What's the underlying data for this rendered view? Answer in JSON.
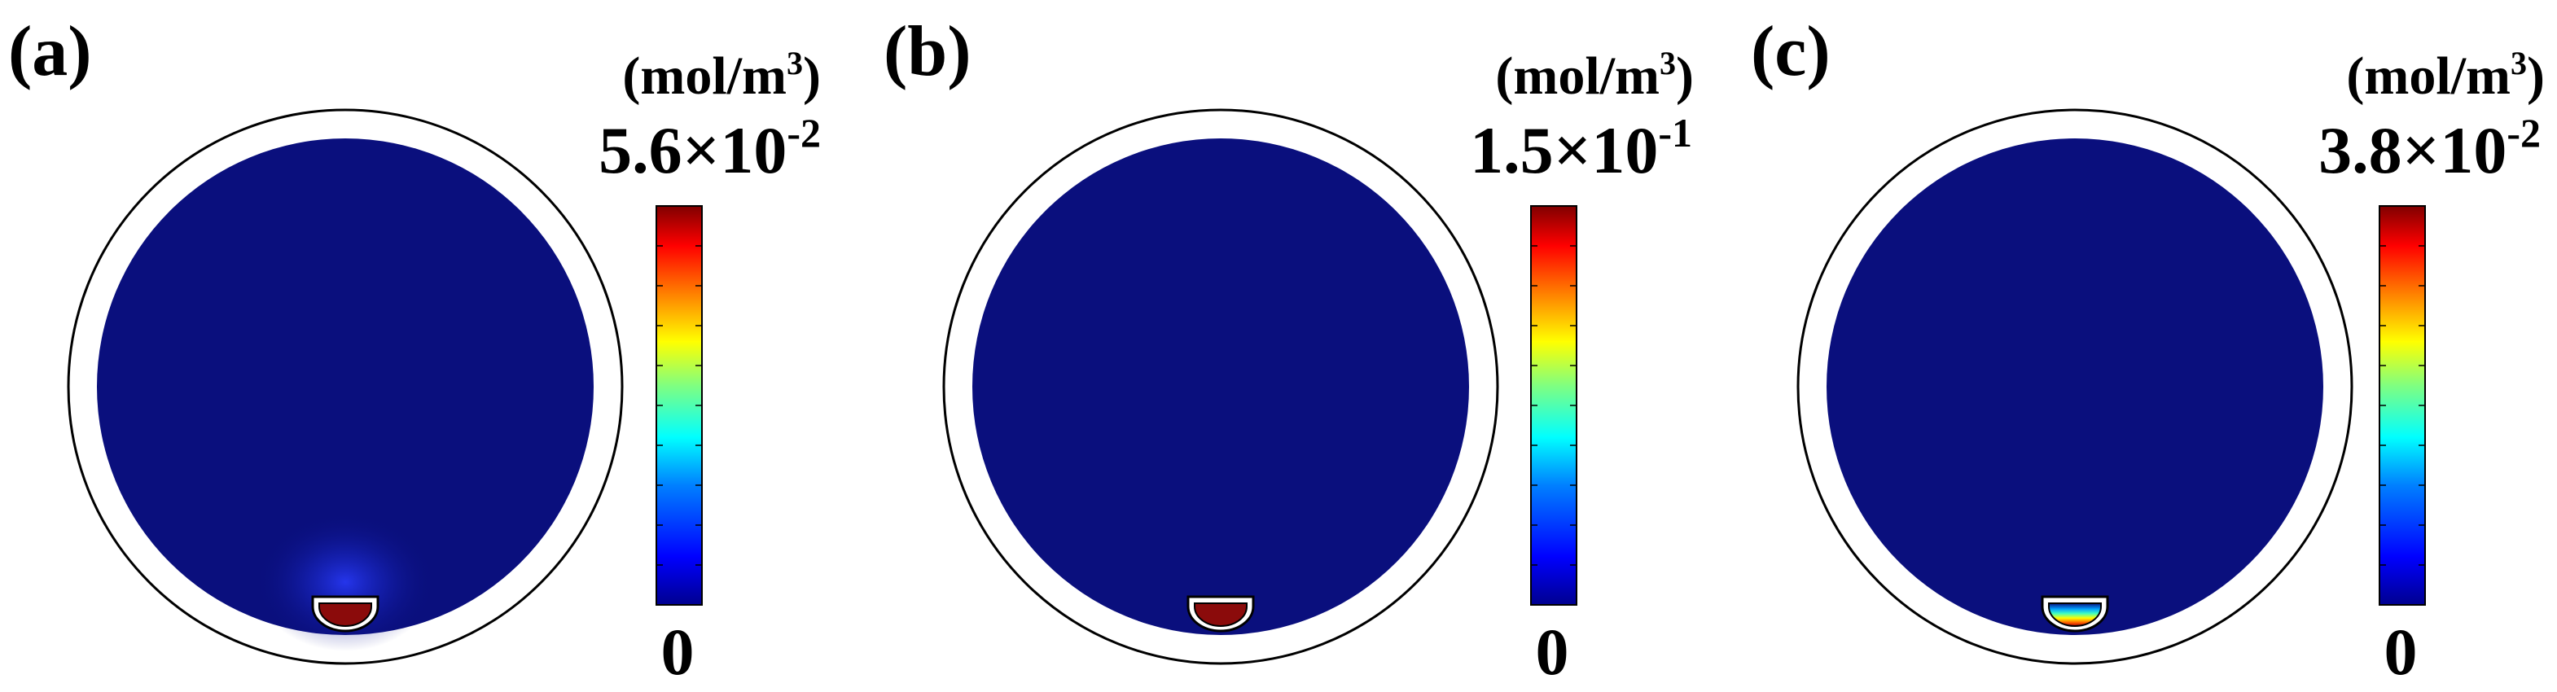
{
  "colors": {
    "domain_fill": "#0a0f7d",
    "ring_stroke": "#000000",
    "cup_high": "#8b0b0b",
    "colormap": [
      "#00008f",
      "#0000ff",
      "#0080ff",
      "#00ffff",
      "#80ff80",
      "#ffff00",
      "#ff8000",
      "#ff0000",
      "#800000"
    ]
  },
  "panels": [
    {
      "label": "(a)",
      "unit": {
        "main": "(mol/m",
        "sup": "3",
        "close": ")"
      },
      "max": {
        "mantissa": "5.6×10",
        "exponent": "-2"
      },
      "min": "0",
      "cup_state": "saturated",
      "glow": true
    },
    {
      "label": "(b)",
      "unit": {
        "main": "(mol/m",
        "sup": "3",
        "close": ")"
      },
      "max": {
        "mantissa": "1.5×10",
        "exponent": "-1"
      },
      "min": "0",
      "cup_state": "saturated",
      "glow": false
    },
    {
      "label": "(c)",
      "unit": {
        "main": "(mol/m",
        "sup": "3",
        "close": ")"
      },
      "max": {
        "mantissa": "3.8×10",
        "exponent": "-2"
      },
      "min": "0",
      "cup_state": "gradient",
      "glow": false
    }
  ]
}
